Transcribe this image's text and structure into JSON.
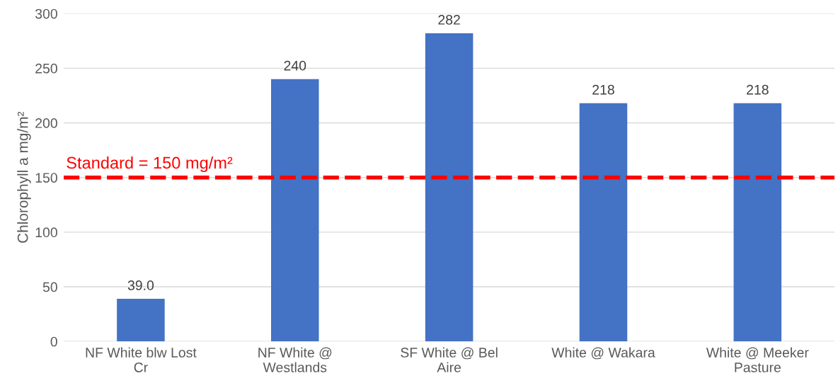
{
  "chart_data": {
    "type": "bar",
    "ylabel": "Chlorophyll a mg/m²",
    "categories": [
      "NF White blw Lost\nCr",
      "NF White @\nWestlands",
      "SF White @ Bel\nAire",
      "White @ Wakara",
      "White @ Meeker\nPasture"
    ],
    "values": [
      39.0,
      240,
      282,
      218,
      218
    ],
    "color": "#4472c4",
    "value_labels": [
      "39.0",
      "240",
      "282",
      "218",
      "218"
    ],
    "ylim": [
      0,
      300
    ],
    "yticks": [
      0,
      50,
      100,
      150,
      200,
      250,
      300
    ],
    "grid": "y",
    "ref_lines": [
      {
        "axis": "y",
        "value": 150,
        "label": "Standard = 150 mg/m²",
        "color": "#ff0000",
        "line_style": "dashed"
      }
    ]
  }
}
